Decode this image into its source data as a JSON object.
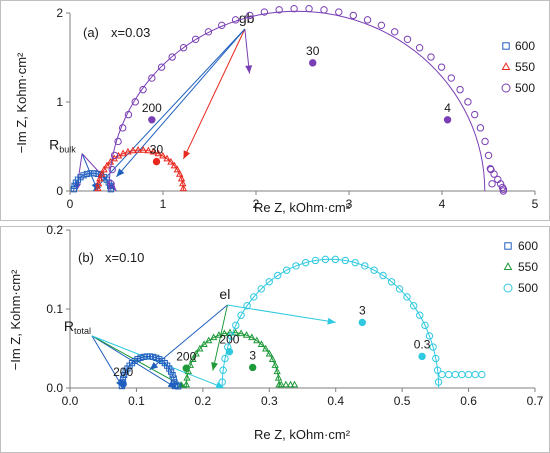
{
  "colors": {
    "s600": "#1f5fbf",
    "s550": "#e8281e",
    "s500": "#7a3fb5",
    "s550b": "#1e9a3a",
    "s500b": "#2fc9e0",
    "axis": "#7f7f7f",
    "text": "#1a1a1a"
  },
  "chart_data": [
    {
      "type": "scatter",
      "panel_label": "(a)",
      "composition": "x=0.03",
      "xlabel": "Re Z, kOhm·cm²",
      "ylabel": "−Im Z, Kohm·cm²",
      "xlim": [
        0,
        5
      ],
      "ylim": [
        0,
        2
      ],
      "x_ticks": [
        0,
        1,
        2,
        3,
        4,
        5
      ],
      "y_ticks": [
        0,
        1,
        2
      ],
      "x_tick_labels": [
        "0",
        "1",
        "2",
        "3",
        "4",
        "5"
      ],
      "y_tick_labels": [
        "0",
        "1",
        "2"
      ],
      "legend": {
        "position": "top-right",
        "entries": [
          "600",
          "550",
          "500"
        ]
      },
      "series": [
        {
          "name": "600",
          "marker": "square",
          "color_key": "s600",
          "arc_center": 0.24,
          "arc_radius": 0.2,
          "fit_center": 0.24,
          "fit_radius": 0.2,
          "n_points": 16
        },
        {
          "name": "550",
          "marker": "triangle",
          "color_key": "s550",
          "arc_center": 0.76,
          "arc_radius": 0.46,
          "fit_center": 0.76,
          "fit_radius": 0.46,
          "n_points": 26
        },
        {
          "name": "500",
          "marker": "circle",
          "color_key": "s500",
          "arc_center": 2.49,
          "arc_radius": 2.05,
          "fit_center": 2.44,
          "fit_radius": 2.02,
          "n_points": 40,
          "lowfreq_tail": [
            [
              4.52,
              0.25
            ],
            [
              4.56,
              0.19
            ],
            [
              4.6,
              0.13
            ],
            [
              4.63,
              0.08
            ],
            [
              4.65,
              0.04
            ],
            [
              4.66,
              0.02
            ],
            [
              4.66,
              0.0
            ]
          ]
        }
      ],
      "highlighted_points": [
        {
          "x": 0.88,
          "y": 0.8,
          "label": "200",
          "color_key": "s500"
        },
        {
          "x": 2.61,
          "y": 1.44,
          "label": "30",
          "color_key": "s500"
        },
        {
          "x": 4.06,
          "y": 0.8,
          "label": "4",
          "color_key": "s500"
        },
        {
          "x": 0.93,
          "y": 0.33,
          "label": "30",
          "color_key": "s550"
        }
      ],
      "annotations": [
        {
          "id": "rbulk",
          "main": "R",
          "sub": "bulk",
          "at": [
            0.13,
            0.42
          ],
          "arrows": [
            [
              0.07,
              0.0
            ],
            [
              0.3,
              0.0
            ],
            [
              0.5,
              0.0
            ]
          ]
        },
        {
          "id": "gb",
          "main": "gb",
          "at": [
            1.88,
            1.82
          ],
          "arrows": [
            [
              0.25,
              0.0
            ],
            [
              1.22,
              0.36
            ],
            [
              1.93,
              1.32
            ],
            [
              0.5,
              0.16
            ]
          ]
        }
      ]
    },
    {
      "type": "scatter",
      "panel_label": "(b)",
      "composition": "x=0.10",
      "xlabel": "Re Z, kOhm·cm²",
      "ylabel": "−Im Z, Kohm·cm²",
      "xlim": [
        0,
        0.7
      ],
      "ylim": [
        0,
        0.2
      ],
      "x_ticks": [
        0,
        0.1,
        0.2,
        0.3,
        0.4,
        0.5,
        0.6,
        0.7
      ],
      "y_ticks": [
        0,
        0.1,
        0.2
      ],
      "x_tick_labels": [
        "0.0",
        "0.1",
        "0.2",
        "0.3",
        "0.4",
        "0.5",
        "0.6",
        "0.7"
      ],
      "y_tick_labels": [
        "0.0",
        "0.1",
        "0.2"
      ],
      "legend": {
        "position": "top-right",
        "entries": [
          "600",
          "550",
          "500"
        ]
      },
      "series": [
        {
          "name": "600",
          "marker": "square",
          "color_key": "s600",
          "arc_center": 0.118,
          "arc_radius": 0.04,
          "fit_center": 0.118,
          "fit_radius": 0.04,
          "n_points": 26,
          "tail": [
            [
              0.16,
              0.004
            ],
            [
              0.163,
              0.002
            ]
          ]
        },
        {
          "name": "550",
          "marker": "triangle",
          "color_key": "s550b",
          "arc_center": 0.245,
          "arc_radius": 0.07,
          "fit_center": 0.245,
          "fit_radius": 0.07,
          "n_points": 26,
          "tail": [
            [
              0.318,
              0.004
            ],
            [
              0.325,
              0.004
            ],
            [
              0.332,
              0.004
            ],
            [
              0.338,
              0.004
            ]
          ]
        },
        {
          "name": "500",
          "marker": "circle",
          "color_key": "s500b",
          "arc_center": 0.392,
          "arc_radius": 0.163,
          "fit_center": 0.392,
          "fit_radius": 0.163,
          "n_points": 34,
          "tail": [
            [
              0.56,
              0.017
            ],
            [
              0.57,
              0.017
            ],
            [
              0.58,
              0.017
            ],
            [
              0.59,
              0.017
            ],
            [
              0.6,
              0.017
            ],
            [
              0.61,
              0.017
            ],
            [
              0.62,
              0.017
            ]
          ]
        }
      ],
      "highlighted_points": [
        {
          "x": 0.08,
          "y": 0.005,
          "label": "200",
          "color_key": "s600"
        },
        {
          "x": 0.24,
          "y": 0.046,
          "label": "200",
          "color_key": "s500b"
        },
        {
          "x": 0.44,
          "y": 0.083,
          "label": "3",
          "color_key": "s500b"
        },
        {
          "x": 0.53,
          "y": 0.04,
          "label": "0.3",
          "color_key": "s500b"
        },
        {
          "x": 0.275,
          "y": 0.026,
          "label": "3",
          "color_key": "s550b"
        },
        {
          "x": 0.175,
          "y": 0.025,
          "label": "200",
          "color_key": "s550b"
        }
      ],
      "annotations": [
        {
          "id": "rtotal",
          "main": "R",
          "sub": "total",
          "at": [
            0.033,
            0.066
          ],
          "arrows": [
            [
              0.08,
              0.0
            ],
            [
              0.16,
              0.0
            ],
            [
              0.175,
              0.0
            ],
            [
              0.232,
              0.0
            ]
          ]
        },
        {
          "id": "el",
          "main": "el",
          "at": [
            0.237,
            0.105
          ],
          "arrows": [
            [
              0.12,
              0.023
            ],
            [
              0.215,
              0.022
            ],
            [
              0.4,
              0.083
            ]
          ]
        }
      ]
    }
  ]
}
